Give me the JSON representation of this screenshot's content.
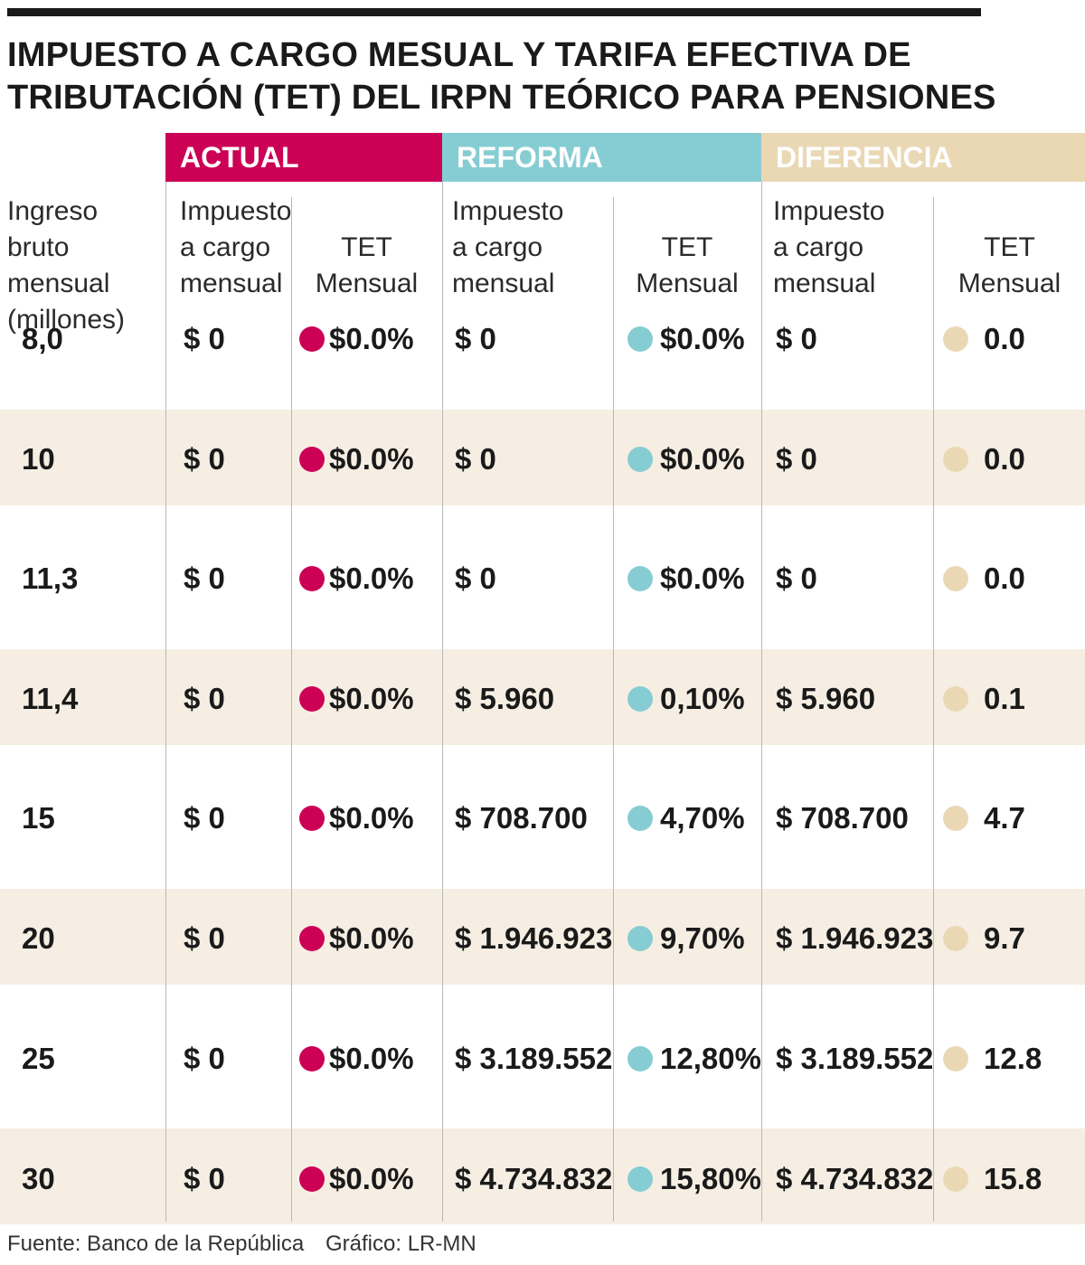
{
  "title": "IMPUESTO A CARGO MESUAL Y TARIFA EFECTIVA DE TRIBUTACIÓN (TET) DEL IRPN TEÓRICO PARA PENSIONES",
  "colors": {
    "actual": "#cc0055",
    "reforma": "#86cdd3",
    "diferencia": "#ead8b5",
    "band": "#f6eee2"
  },
  "groups": {
    "actual": "ACTUAL",
    "reforma": "REFORMA",
    "diferencia": "DIFERENCIA"
  },
  "headers": {
    "ingreso": [
      "Ingreso",
      "bruto mensual",
      "(millones)"
    ],
    "impuesto": [
      "Impuesto",
      "a cargo",
      "mensual"
    ],
    "tet": "TET Mensual"
  },
  "rows": [
    {
      "ingreso": "8,0",
      "act_imp": "$ 0",
      "act_tet": "$0.0%",
      "ref_imp": "$ 0",
      "ref_tet": "$0.0%",
      "dif_imp": "$ 0",
      "dif_tet": "0.0"
    },
    {
      "ingreso": "10",
      "act_imp": "$ 0",
      "act_tet": "$0.0%",
      "ref_imp": "$ 0",
      "ref_tet": "$0.0%",
      "dif_imp": "$ 0",
      "dif_tet": "0.0"
    },
    {
      "ingreso": "11,3",
      "act_imp": "$ 0",
      "act_tet": "$0.0%",
      "ref_imp": "$ 0",
      "ref_tet": "$0.0%",
      "dif_imp": "$ 0",
      "dif_tet": "0.0"
    },
    {
      "ingreso": "11,4",
      "act_imp": "$ 0",
      "act_tet": "$0.0%",
      "ref_imp": "$ 5.960",
      "ref_tet": "0,10%",
      "dif_imp": "$ 5.960",
      "dif_tet": "0.1"
    },
    {
      "ingreso": "15",
      "act_imp": "$ 0",
      "act_tet": "$0.0%",
      "ref_imp": "$ 708.700",
      "ref_tet": "4,70%",
      "dif_imp": "$ 708.700",
      "dif_tet": "4.7"
    },
    {
      "ingreso": "20",
      "act_imp": "$ 0",
      "act_tet": "$0.0%",
      "ref_imp": "$ 1.946.923",
      "ref_tet": "9,70%",
      "dif_imp": "$ 1.946.923",
      "dif_tet": "9.7"
    },
    {
      "ingreso": "25",
      "act_imp": "$ 0",
      "act_tet": "$0.0%",
      "ref_imp": "$ 3.189.552",
      "ref_tet": "12,80%",
      "dif_imp": "$ 3.189.552",
      "dif_tet": "12.8"
    },
    {
      "ingreso": "30",
      "act_imp": "$ 0",
      "act_tet": "$0.0%",
      "ref_imp": "$ 4.734.832",
      "ref_tet": "15,80%",
      "dif_imp": "$ 4.734.832",
      "dif_tet": "15.8"
    }
  ],
  "footer": {
    "source": "Fuente: Banco de la República",
    "graphic": "Gráfico: LR-MN"
  }
}
